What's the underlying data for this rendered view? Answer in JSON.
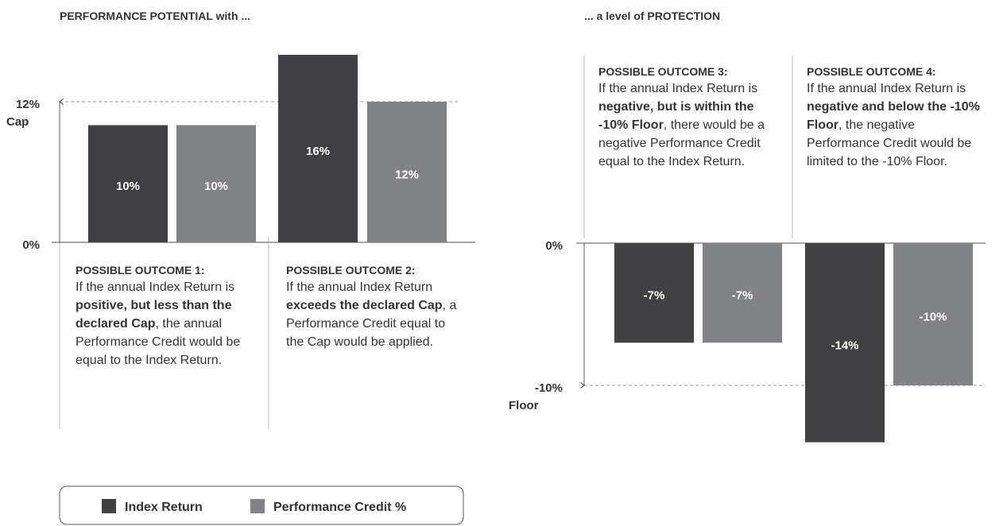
{
  "chart_data": [
    {
      "type": "bar",
      "title": "PERFORMANCE POTENTIAL with ...",
      "categories": [
        "POSSIBLE OUTCOME 1:",
        "POSSIBLE OUTCOME 2:"
      ],
      "descriptions": [
        [
          {
            "text": "If the annual Index Return is "
          },
          {
            "text": "positive, but less than the declared Cap",
            "bold": true
          },
          {
            "text": ", the annual Performance Credit would be equal to the Index Return."
          }
        ],
        [
          {
            "text": "If the annual Index Return "
          },
          {
            "text": "exceeds the declared Cap",
            "bold": true
          },
          {
            "text": ", a Performance Credit equal to the Cap would be applied."
          }
        ]
      ],
      "series": [
        {
          "name": "Index Return",
          "color": "#414143",
          "values": [
            10,
            16
          ],
          "value_labels": [
            "10%",
            "16%"
          ]
        },
        {
          "name": "Performance Credit %",
          "color": "#818285",
          "values": [
            10,
            12
          ],
          "value_labels": [
            "10%",
            "12%"
          ]
        }
      ],
      "ylim": [
        0,
        17
      ],
      "yticks": [
        {
          "value": 0,
          "label": "0%"
        },
        {
          "value": 12,
          "label": "12%"
        }
      ],
      "annotations": [
        "Cap"
      ]
    },
    {
      "type": "bar",
      "title": "... a level of PROTECTION",
      "categories": [
        "POSSIBLE OUTCOME 3:",
        "POSSIBLE OUTCOME 4:"
      ],
      "descriptions": [
        [
          {
            "text": "If the annual Index Return is "
          },
          {
            "text": "negative, but is within the -10% Floor",
            "bold": true
          },
          {
            "text": ", there would be a negative Performance Credit equal to the Index Return."
          }
        ],
        [
          {
            "text": "If the annual Index Return is "
          },
          {
            "text": "negative and below the -10% Floor",
            "bold": true
          },
          {
            "text": ", the negative Performance Credit would be limited to the -10% Floor."
          }
        ]
      ],
      "series": [
        {
          "color": "#414143",
          "values": [
            -7,
            -14
          ],
          "value_labels": [
            "-7%",
            "-14%"
          ]
        },
        {
          "color": "#818285",
          "values": [
            -7,
            -10
          ],
          "value_labels": [
            "-7%",
            "-10%"
          ]
        }
      ],
      "ylim": [
        -15,
        0
      ],
      "yticks": [
        {
          "value": 0,
          "label": "0%"
        },
        {
          "value": -10,
          "label": "-10%"
        }
      ],
      "annotations": [
        "Floor"
      ]
    }
  ]
}
